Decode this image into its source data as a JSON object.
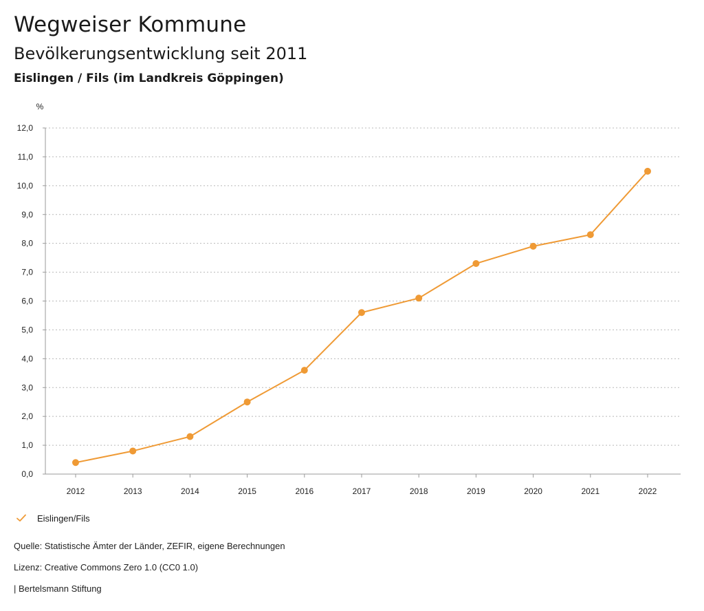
{
  "header": {
    "title": "Wegweiser Kommune",
    "subtitle": "Bevölkerungsentwicklung seit 2011",
    "region": "Eislingen / Fils (im Landkreis Göppingen)"
  },
  "chart_data": {
    "type": "line",
    "title": "Bevölkerungsentwicklung seit 2011",
    "ylabel": "%",
    "xlabel": "",
    "x": [
      "2012",
      "2013",
      "2014",
      "2015",
      "2016",
      "2017",
      "2018",
      "2019",
      "2020",
      "2021",
      "2022"
    ],
    "ylim": [
      0,
      12
    ],
    "yticks": [
      "0,0",
      "1,0",
      "2,0",
      "3,0",
      "4,0",
      "5,0",
      "6,0",
      "7,0",
      "8,0",
      "9,0",
      "10,0",
      "11,0",
      "12,0"
    ],
    "grid": true,
    "legend_position": "bottom-left",
    "series": [
      {
        "name": "Eislingen/Fils",
        "color": "#ef9a35",
        "values": [
          0.4,
          0.8,
          1.3,
          2.5,
          3.6,
          5.6,
          6.1,
          7.3,
          7.9,
          8.3,
          10.5
        ]
      }
    ]
  },
  "legend": {
    "label": "Eislingen/Fils",
    "icon": "check-icon",
    "color": "#ef9a35"
  },
  "footer": {
    "source": "Quelle: Statistische Ämter der Länder, ZEFIR, eigene Berechnungen",
    "license": "Lizenz: Creative Commons Zero 1.0 (CC0 1.0)",
    "publisher": "| Bertelsmann Stiftung"
  }
}
